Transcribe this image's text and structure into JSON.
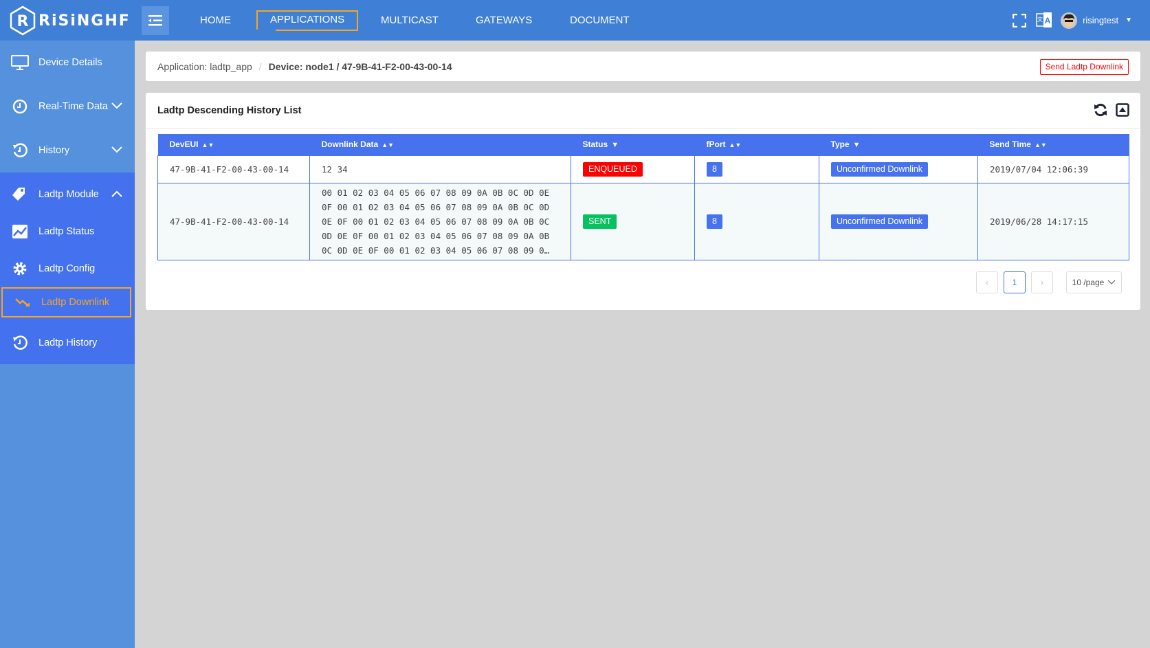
{
  "header": {
    "logo": "RiSiNGHF",
    "nav": [
      "HOME",
      "APPLICATIONS",
      "MULTICAST",
      "GATEWAYS",
      "DOCUMENT"
    ],
    "active_nav": "APPLICATIONS",
    "username": "risingtest"
  },
  "sidebar": {
    "items": [
      {
        "label": "Device Details",
        "icon": "monitor-icon"
      },
      {
        "label": "Real-Time Data",
        "icon": "clock-icon"
      },
      {
        "label": "History",
        "icon": "history-icon"
      },
      {
        "label": "Ladtp Module",
        "icon": "tag-icon"
      },
      {
        "label": "Ladtp Status",
        "icon": "chart-icon"
      },
      {
        "label": "Ladtp Config",
        "icon": "gear-icon"
      },
      {
        "label": "Ladtp Downlink",
        "icon": "trend-down-icon"
      },
      {
        "label": "Ladtp History",
        "icon": "history-icon"
      }
    ],
    "active": "Ladtp Downlink"
  },
  "breadcrumb": {
    "application": "Application: ladtp_app",
    "separator": "/",
    "device": "Device: node1 / 47-9B-41-F2-00-43-00-14",
    "send_button": "Send Ladtp Downlink"
  },
  "list": {
    "title": "Ladtp Descending History List",
    "columns": [
      "DevEUI",
      "Downlink Data",
      "Status",
      "fPort",
      "Type",
      "Send Time"
    ],
    "rows": [
      {
        "deveui": "47-9B-41-F2-00-43-00-14",
        "data": [
          "12 34"
        ],
        "status": "ENQUEUED",
        "fport": "8",
        "type": "Unconfirmed Downlink",
        "time": "2019/07/04 12:06:39"
      },
      {
        "deveui": "47-9B-41-F2-00-43-00-14",
        "data": [
          "00 01 02 03 04 05 06 07 08 09 0A 0B 0C 0D 0E",
          "0F 00 01 02 03 04 05 06 07 08 09 0A 0B 0C 0D",
          "0E 0F 00 01 02 03 04 05 06 07 08 09 0A 0B 0C",
          "0D 0E 0F 00 01 02 03 04 05 06 07 08 09 0A 0B",
          "0C 0D 0E 0F 00 01 02 03 04 05 06 07 08 09 0…"
        ],
        "status": "SENT",
        "fport": "8",
        "type": "Unconfirmed Downlink",
        "time": "2019/06/28 14:17:15"
      }
    ]
  },
  "pagination": {
    "prev": "‹",
    "current": "1",
    "next": "›",
    "page_size": "10 /page"
  },
  "colors": {
    "header": "#3f7fd6",
    "sidebar": "#5591dc",
    "module": "#4472ee",
    "accent": "#f5a623",
    "table_header": "#4672ee",
    "enqueued": "#ff0000",
    "sent": "#07c160"
  }
}
